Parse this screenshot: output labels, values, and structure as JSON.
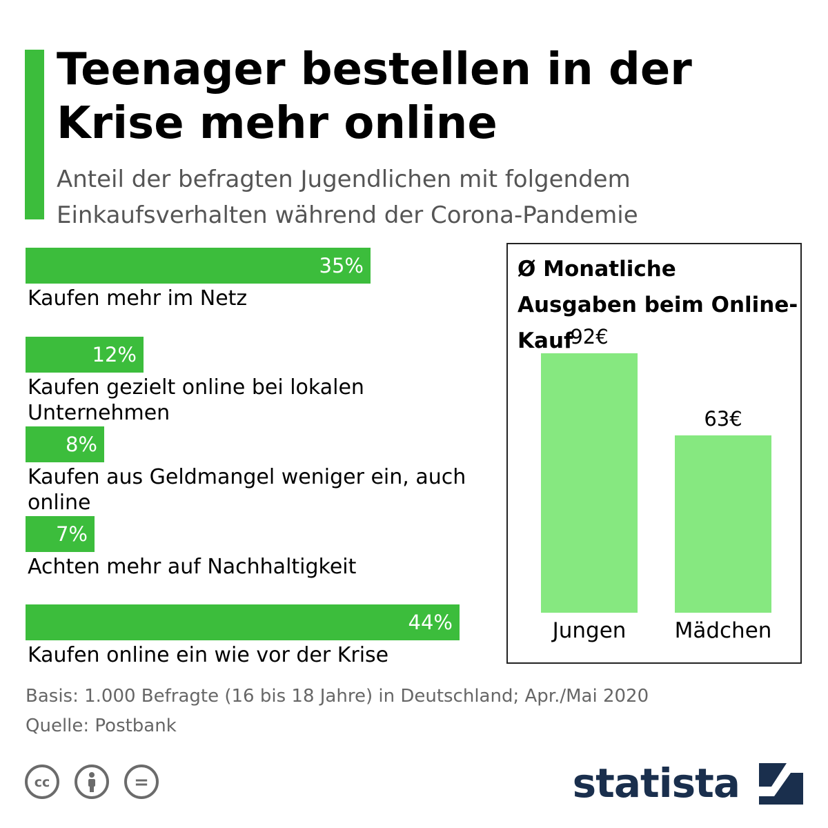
{
  "header": {
    "title": "Teenager bestellen in der Krise mehr online",
    "subtitle": "Anteil der befragten Jugendlichen mit folgendem Einkaufsverhalten während der Corona-Pandemie"
  },
  "colors": {
    "accent": "#3cbd3c",
    "bar_primary": "#3cbd3c",
    "bar_light": "#86e880",
    "logo": "#1a2f4d",
    "footnote": "#666666"
  },
  "chart_data": [
    {
      "type": "bar",
      "orientation": "horizontal",
      "categories": [
        "Kaufen mehr im Netz",
        "Kaufen gezielt online bei lokalen Unternehmen",
        "Kaufen aus Geldmangel weniger ein, auch online",
        "Achten mehr auf Nachhaltigkeit",
        "Kaufen online ein wie vor der Krise"
      ],
      "values": [
        35,
        12,
        8,
        7,
        44
      ],
      "value_labels": [
        "35%",
        "12%",
        "8%",
        "7%",
        "44%"
      ],
      "unit": "%",
      "xlim": [
        0,
        50
      ]
    },
    {
      "type": "bar",
      "orientation": "vertical",
      "title": "Ø Monatliche Ausgaben beim Online-Kauf",
      "categories": [
        "Jungen",
        "Mädchen"
      ],
      "values": [
        92,
        63
      ],
      "value_labels": [
        "92€",
        "63€"
      ],
      "unit": "€",
      "ylim": [
        0,
        92
      ]
    }
  ],
  "footer": {
    "basis": "Basis: 1.000 Befragte (16 bis 18 Jahre) in Deutschland; Apr./Mai 2020",
    "source": "Quelle: Postbank",
    "cc_icons": [
      "cc-icon",
      "by-icon",
      "nd-icon"
    ],
    "cc_glyphs": [
      "cc",
      "",
      "="
    ],
    "logo_text": "statista"
  }
}
